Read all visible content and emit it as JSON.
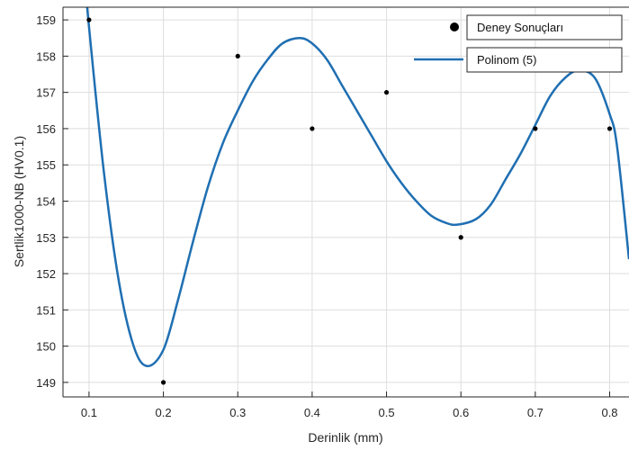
{
  "chart_data": {
    "type": "scatter",
    "title": "",
    "xlabel": "Derinlik (mm)",
    "ylabel": "Sertlik1000-NB (HV0.1)",
    "xlim": [
      0.065,
      0.826
    ],
    "ylim": [
      148.6,
      159.35
    ],
    "grid": true,
    "xticks": [
      0.1,
      0.2,
      0.3,
      0.4,
      0.5,
      0.6,
      0.7,
      0.8
    ],
    "xtick_labels": [
      "0.1",
      "0.2",
      "0.3",
      "0.4",
      "0.5",
      "0.6",
      "0.7",
      "0.8"
    ],
    "yticks": [
      149,
      150,
      151,
      152,
      153,
      154,
      155,
      156,
      157,
      158,
      159
    ],
    "ytick_labels": [
      "149",
      "150",
      "151",
      "152",
      "153",
      "154",
      "155",
      "156",
      "157",
      "158",
      "159"
    ],
    "legend_position": "top-right",
    "series": [
      {
        "name": "Deney Sonuçları",
        "kind": "scatter",
        "color": "#000000",
        "x": [
          0.1,
          0.2,
          0.3,
          0.4,
          0.5,
          0.6,
          0.7,
          0.8
        ],
        "y": [
          159,
          149,
          158,
          156,
          157,
          153,
          156,
          156
        ]
      },
      {
        "name": "Polinom (5)",
        "kind": "line",
        "color": "#1f6fb2",
        "x": [
          0.095,
          0.1,
          0.12,
          0.14,
          0.16,
          0.178,
          0.2,
          0.22,
          0.24,
          0.26,
          0.28,
          0.3,
          0.32,
          0.34,
          0.36,
          0.383,
          0.4,
          0.42,
          0.44,
          0.46,
          0.48,
          0.5,
          0.52,
          0.54,
          0.56,
          0.58,
          0.595,
          0.62,
          0.64,
          0.66,
          0.68,
          0.7,
          0.72,
          0.74,
          0.758,
          0.78,
          0.8,
          0.81,
          0.826
        ],
        "y": [
          160,
          158.8,
          154.8,
          151.8,
          150.0,
          149.45,
          149.9,
          151.3,
          152.9,
          154.4,
          155.6,
          156.5,
          157.3,
          157.9,
          158.35,
          158.5,
          158.35,
          157.9,
          157.2,
          156.5,
          155.8,
          155.1,
          154.5,
          154.0,
          153.6,
          153.4,
          153.35,
          153.5,
          153.9,
          154.6,
          155.3,
          156.1,
          156.9,
          157.4,
          157.6,
          157.4,
          156.4,
          155.5,
          152.4
        ]
      }
    ]
  }
}
